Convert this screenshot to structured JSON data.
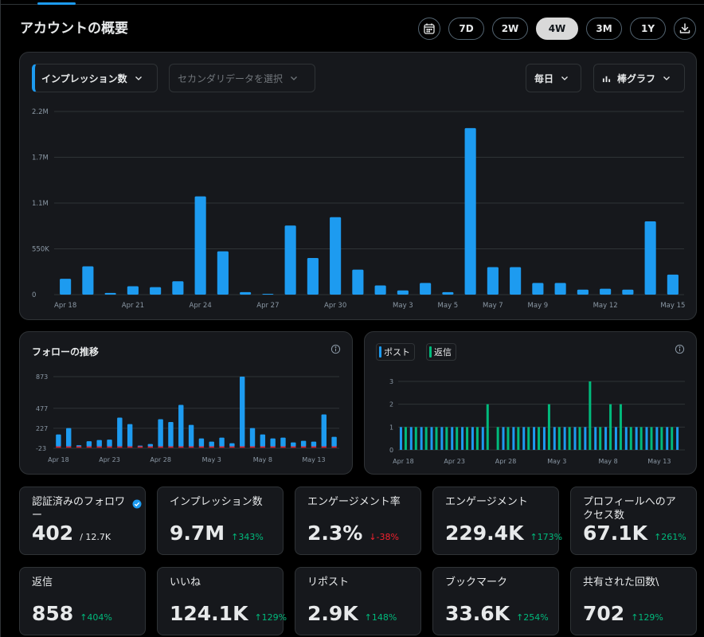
{
  "page": {
    "title": "アカウントの概要"
  },
  "range_buttons": [
    {
      "label": "7D",
      "active": false
    },
    {
      "label": "2W",
      "active": false
    },
    {
      "label": "4W",
      "active": true
    },
    {
      "label": "3M",
      "active": false
    },
    {
      "label": "1Y",
      "active": false
    }
  ],
  "toolbar": {
    "calendar_icon": "calendar-icon",
    "download_icon": "download-icon"
  },
  "main_chart": {
    "primary_select": "インプレッション数",
    "secondary_placeholder": "セカンダリデータを選択",
    "interval_select": "毎日",
    "chart_type_select": "棒グラフ"
  },
  "follow_panel": {
    "title": "フォローの推移",
    "info_icon": "info-icon"
  },
  "posts_panel": {
    "legend_posts": "ポスト",
    "legend_replies": "返信",
    "info_icon": "info-icon"
  },
  "colors": {
    "accent": "#1d9bf0",
    "reply": "#00ba7c",
    "negative": "#f4212e",
    "panel": "#16181c"
  },
  "chart_data": [
    {
      "type": "bar",
      "y_ticks": [
        "2.2M",
        "1.7M",
        "1.1M",
        "550K",
        "0"
      ],
      "y_tick_values": [
        2200000,
        1650000,
        1100000,
        550000,
        0
      ],
      "ylim": [
        0,
        2200000
      ],
      "x_tick_labels": [
        "Apr 18",
        "Apr 21",
        "Apr 24",
        "Apr 27",
        "Apr 30",
        "May 3",
        "May 5",
        "May 7",
        "May 9",
        "May 12",
        "May 15"
      ],
      "x_tick_index": [
        0,
        3,
        6,
        9,
        12,
        15,
        17,
        19,
        21,
        24,
        27
      ],
      "grid": true,
      "series": [
        {
          "color": "#1d9bf0",
          "values": [
            190000,
            340000,
            20000,
            100000,
            90000,
            160000,
            1180000,
            520000,
            30000,
            10000,
            830000,
            440000,
            930000,
            300000,
            110000,
            50000,
            140000,
            30000,
            2000000,
            330000,
            330000,
            140000,
            140000,
            60000,
            70000,
            60000,
            880000,
            240000
          ]
        }
      ]
    },
    {
      "type": "bar",
      "title": "フォローの推移",
      "y_ticks": [
        "873",
        "477",
        "227",
        "-23"
      ],
      "y_tick_values": [
        873,
        477,
        227,
        -23
      ],
      "ylim": [
        -23,
        873
      ],
      "x_tick_labels": [
        "Apr 18",
        "Apr 23",
        "Apr 28",
        "May 3",
        "May 8",
        "May 13"
      ],
      "x_tick_index": [
        0,
        5,
        10,
        15,
        20,
        25
      ],
      "grid": true,
      "series": [
        {
          "name": "gain",
          "color": "#1d9bf0",
          "values": [
            150,
            230,
            15,
            65,
            80,
            85,
            360,
            280,
            10,
            30,
            340,
            305,
            520,
            270,
            100,
            60,
            110,
            40,
            873,
            230,
            150,
            100,
            110,
            50,
            70,
            60,
            400,
            120
          ]
        },
        {
          "name": "loss",
          "color": "#f4212e",
          "values": [
            -10,
            -10,
            -10,
            -10,
            -10,
            -10,
            -10,
            -10,
            -10,
            -10,
            -10,
            -10,
            -10,
            -10,
            -10,
            -10,
            -10,
            -10,
            -10,
            -10,
            -10,
            -10,
            -10,
            -10,
            -10,
            -10,
            -10,
            -10
          ]
        }
      ]
    },
    {
      "type": "bar",
      "y_ticks": [
        "3",
        "2",
        "1",
        "0"
      ],
      "y_tick_values": [
        3,
        2,
        1,
        0
      ],
      "ylim": [
        0,
        3
      ],
      "x_tick_labels": [
        "Apr 18",
        "Apr 23",
        "Apr 28",
        "May 3",
        "May 8",
        "May 13"
      ],
      "x_tick_index": [
        0,
        5,
        10,
        15,
        20,
        25
      ],
      "grid": true,
      "series": [
        {
          "name": "ポスト",
          "color": "#1d9bf0",
          "values": [
            1,
            1,
            1,
            1,
            1,
            1,
            1,
            1,
            1,
            0,
            1,
            1,
            1,
            1,
            1,
            1,
            1,
            1,
            1,
            1,
            1,
            1,
            1,
            1,
            1,
            1,
            1,
            1
          ]
        },
        {
          "name": "返信",
          "color": "#00ba7c",
          "values": [
            1,
            1,
            1,
            1,
            1,
            1,
            1,
            1,
            2,
            1,
            1,
            1,
            1,
            1,
            2,
            1,
            1,
            1,
            3,
            1,
            2,
            2,
            1,
            1,
            1,
            1,
            1,
            0
          ]
        }
      ]
    }
  ],
  "stats": [
    {
      "label": "認証済みのフォロワー",
      "value": "402",
      "sub": "/ 12.7K",
      "verified": true
    },
    {
      "label": "インプレッション数",
      "value": "9.7M",
      "change": "↑343%",
      "dir": "up"
    },
    {
      "label": "エンゲージメント率",
      "value": "2.3%",
      "change": "↓-38%",
      "dir": "down"
    },
    {
      "label": "エンゲージメント",
      "value": "229.4K",
      "change": "↑173%",
      "dir": "up"
    },
    {
      "label": "プロフィールへのアクセス数",
      "value": "67.1K",
      "change": "↑261%",
      "dir": "up"
    },
    {
      "label": "返信",
      "value": "858",
      "change": "↑404%",
      "dir": "up"
    },
    {
      "label": "いいね",
      "value": "124.1K",
      "change": "↑129%",
      "dir": "up"
    },
    {
      "label": "リポスト",
      "value": "2.9K",
      "change": "↑148%",
      "dir": "up"
    },
    {
      "label": "ブックマーク",
      "value": "33.6K",
      "change": "↑254%",
      "dir": "up"
    },
    {
      "label": "共有された回数\\",
      "value": "702",
      "change": "↑129%",
      "dir": "up"
    }
  ]
}
